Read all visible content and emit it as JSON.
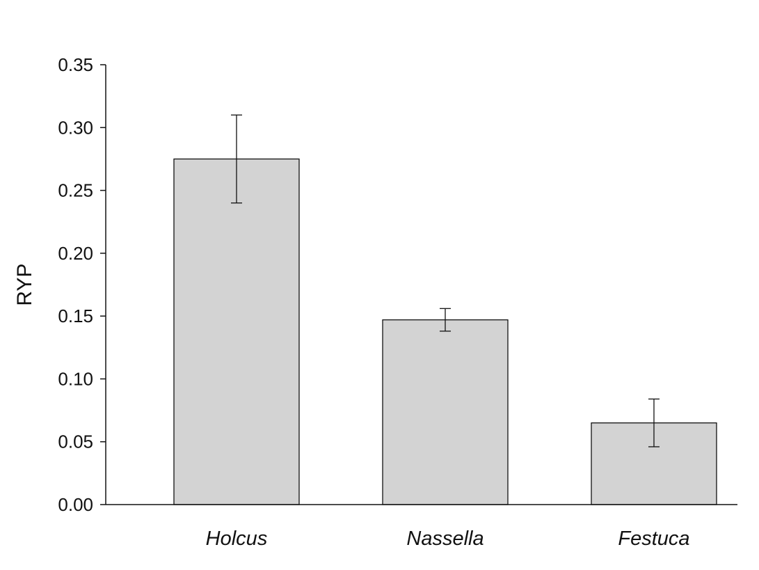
{
  "chart_data": {
    "type": "bar",
    "title": "",
    "xlabel": "",
    "ylabel": "RYP",
    "categories": [
      "Holcus",
      "Nassella",
      "Festuca"
    ],
    "values": [
      0.275,
      0.147,
      0.065
    ],
    "error_low": [
      0.24,
      0.138,
      0.046
    ],
    "error_high": [
      0.31,
      0.156,
      0.084
    ],
    "ylim": [
      0,
      0.35
    ],
    "yticks": [
      "0.00",
      "0.05",
      "0.10",
      "0.15",
      "0.20",
      "0.25",
      "0.30",
      "0.35"
    ],
    "grid": false,
    "legend": "none",
    "colors": {
      "bar_fill": "#d3d3d3",
      "bar_stroke": "#111111",
      "axis": "#111111"
    }
  }
}
